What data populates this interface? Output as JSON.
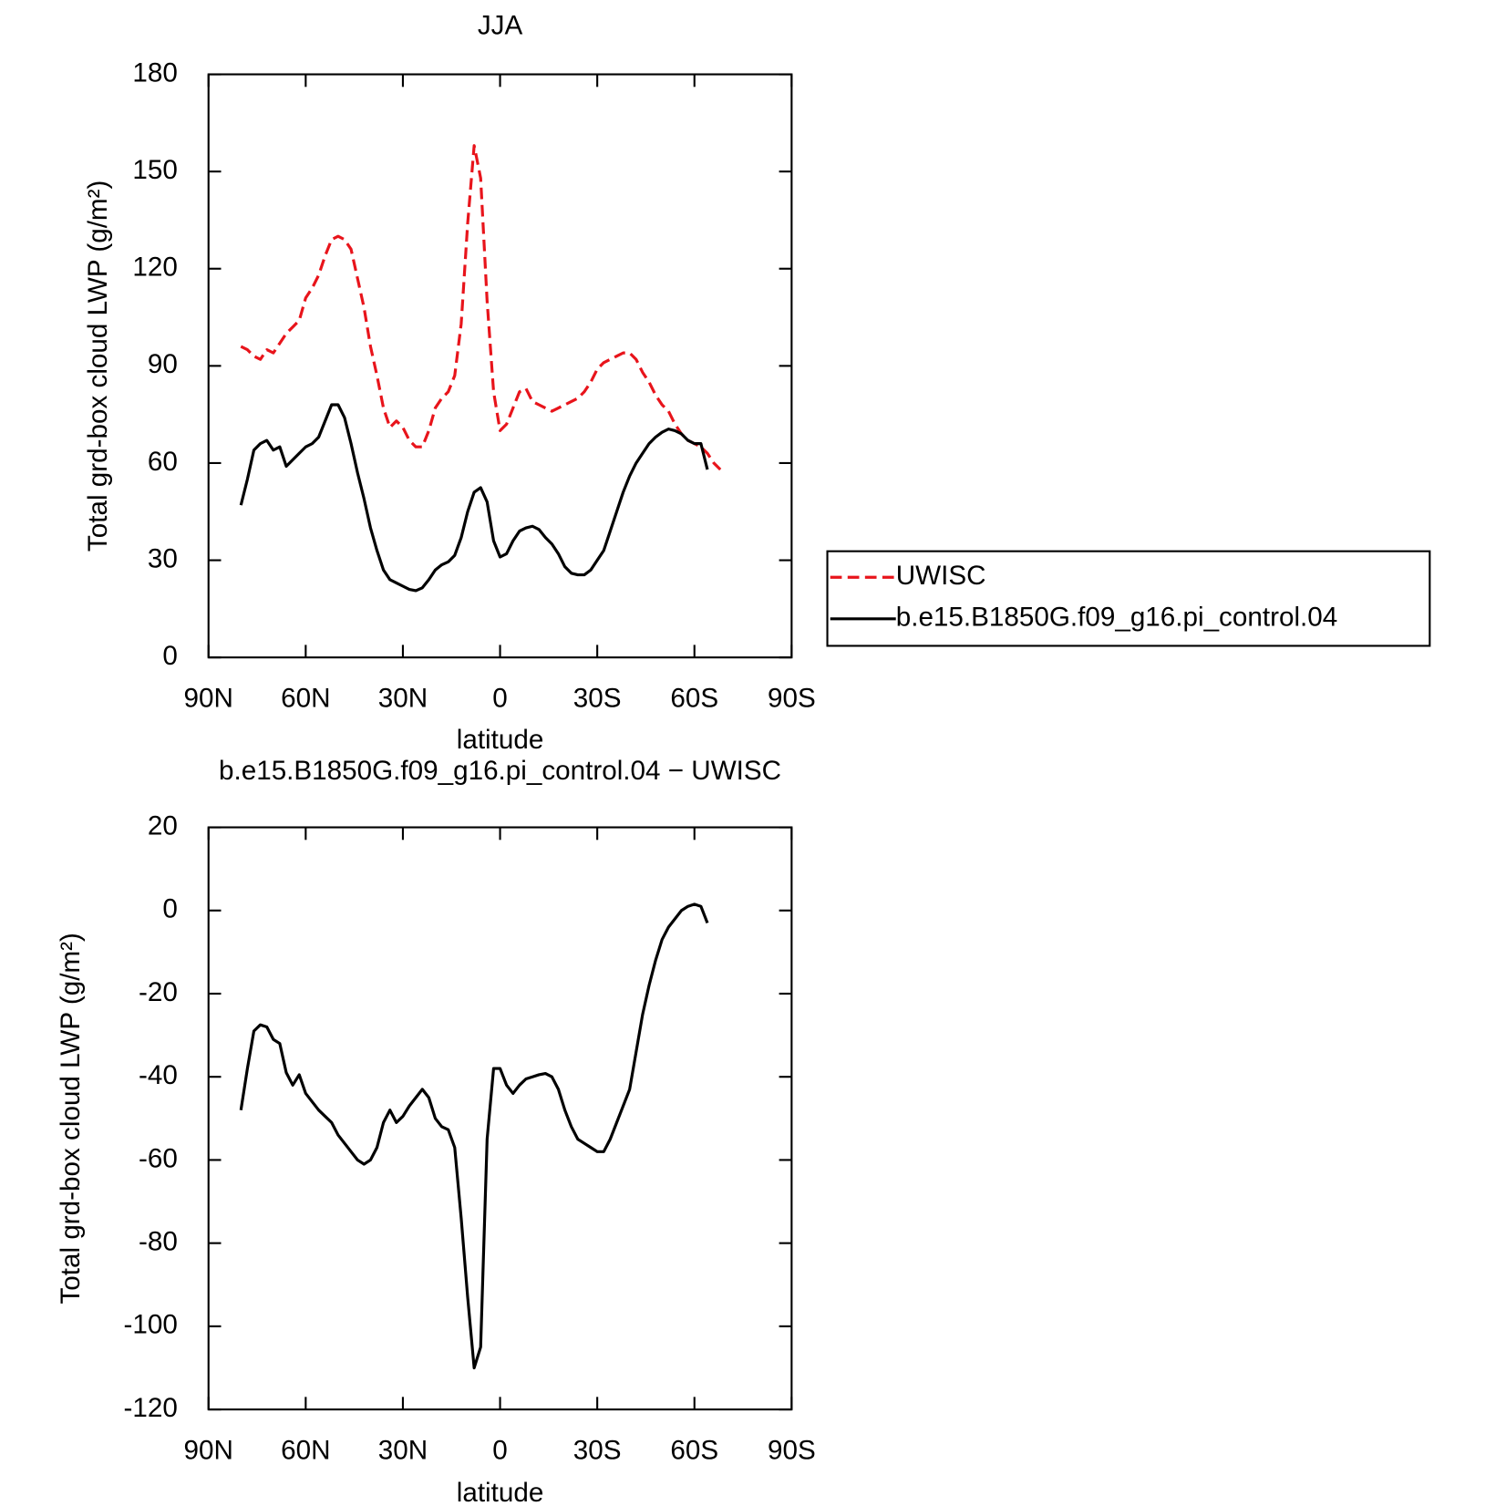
{
  "chart_data": [
    {
      "type": "line",
      "title": "JJA",
      "xlabel": "latitude",
      "ylabel": "Total grd-box cloud LWP (g/m²)",
      "xlim": [
        90,
        -90
      ],
      "xticks": [
        {
          "value": 90,
          "label": "90N"
        },
        {
          "value": 60,
          "label": "60N"
        },
        {
          "value": 30,
          "label": "30N"
        },
        0,
        {
          "value": -30,
          "label": "30S"
        },
        {
          "value": -60,
          "label": "60S"
        },
        {
          "value": -90,
          "label": "90S"
        }
      ],
      "ylim": [
        0,
        180
      ],
      "yticks": [
        0,
        30,
        60,
        90,
        120,
        150,
        180
      ],
      "legend": "right",
      "x": [
        80,
        78,
        76,
        74,
        72,
        70,
        68,
        66,
        64,
        62,
        60,
        58,
        56,
        54,
        52,
        50,
        48,
        46,
        44,
        42,
        40,
        38,
        36,
        34,
        32,
        30,
        28,
        26,
        24,
        22,
        20,
        18,
        16,
        14,
        12,
        10,
        8,
        6,
        4,
        2,
        0,
        -2,
        -4,
        -6,
        -8,
        -10,
        -12,
        -14,
        -16,
        -18,
        -20,
        -22,
        -24,
        -26,
        -28,
        -30,
        -32,
        -34,
        -36,
        -38,
        -40,
        -42,
        -44,
        -46,
        -48,
        -50,
        -52,
        -54,
        -56,
        -58,
        -60,
        -62,
        -64,
        -66,
        -68
      ],
      "series": [
        {
          "name": "UWISC",
          "color": "#e8141b",
          "line_style": "dashed",
          "values": [
            96,
            95,
            93,
            92,
            95,
            94,
            97,
            100,
            102,
            104,
            111,
            114,
            118,
            124,
            129,
            130,
            129,
            126,
            117,
            108,
            96,
            87,
            77,
            71,
            73,
            71,
            67,
            65,
            65,
            70,
            77,
            80,
            82,
            87,
            103,
            134,
            158,
            148,
            110,
            82,
            70,
            72,
            77,
            82,
            83,
            79,
            78,
            77,
            76,
            77,
            78,
            79,
            80,
            82,
            85,
            89,
            91,
            92,
            93,
            94,
            94,
            92,
            88,
            85,
            81,
            78,
            76,
            72,
            69,
            67,
            66,
            65,
            63,
            60,
            58
          ]
        },
        {
          "name": "b.e15.B1850G.f09_g16.pi_control.04",
          "color": "#000000",
          "line_style": "solid",
          "values": [
            47,
            55,
            64,
            66,
            67,
            64,
            65,
            59,
            61,
            63,
            65,
            66,
            68,
            73,
            78,
            78,
            74,
            66,
            57,
            49,
            40,
            33,
            27,
            24,
            23,
            22,
            21,
            20.6,
            21.5,
            24,
            27,
            28.6,
            29.5,
            31.5,
            37,
            45,
            51,
            52.4,
            48,
            36,
            31,
            32,
            36,
            39,
            40,
            40.5,
            39.5,
            37,
            35,
            32,
            28,
            26,
            25.5,
            25.5,
            27,
            30,
            33,
            39,
            45,
            51,
            56,
            60,
            63,
            66,
            68,
            69.5,
            70.5,
            70,
            69,
            67,
            66,
            66,
            58,
            null,
            null
          ]
        }
      ]
    },
    {
      "type": "line",
      "title": "b.e15.B1850G.f09_g16.pi_control.04 − UWISC",
      "xlabel": "latitude",
      "ylabel": "Total grd-box cloud LWP (g/m²)",
      "xlim": [
        90,
        -90
      ],
      "xticks": [
        {
          "value": 90,
          "label": "90N"
        },
        {
          "value": 60,
          "label": "60N"
        },
        {
          "value": 30,
          "label": "30N"
        },
        0,
        {
          "value": -30,
          "label": "30S"
        },
        {
          "value": -60,
          "label": "60S"
        },
        {
          "value": -90,
          "label": "90S"
        }
      ],
      "ylim": [
        -120,
        20
      ],
      "yticks": [
        -120,
        -100,
        -80,
        -60,
        -40,
        -20,
        0,
        20
      ],
      "x": [
        80,
        78,
        76,
        74,
        72,
        70,
        68,
        66,
        64,
        62,
        60,
        58,
        56,
        54,
        52,
        50,
        48,
        46,
        44,
        42,
        40,
        38,
        36,
        34,
        32,
        30,
        28,
        26,
        24,
        22,
        20,
        18,
        16,
        14,
        12,
        10,
        8,
        6,
        4,
        2,
        0,
        -2,
        -4,
        -6,
        -8,
        -10,
        -12,
        -14,
        -16,
        -18,
        -20,
        -22,
        -24,
        -26,
        -28,
        -30,
        -32,
        -34,
        -36,
        -38,
        -40,
        -42,
        -44,
        -46,
        -48,
        -50,
        -52,
        -54,
        -56,
        -58,
        -60,
        -62,
        -64,
        -66,
        -68
      ],
      "series": [
        {
          "color": "#000000",
          "line_style": "solid",
          "values": [
            -48,
            -38,
            -29,
            -27.5,
            -28,
            -31,
            -32,
            -39,
            -42,
            -39.5,
            -44,
            -46,
            -48,
            -49.5,
            -51,
            -54,
            -56,
            -58,
            -60,
            -61,
            -60,
            -57,
            -51,
            -48,
            -51,
            -49.5,
            -47,
            -45,
            -43,
            -45,
            -50,
            -52,
            -52.7,
            -57,
            -74,
            -93,
            -110,
            -105,
            -55,
            -38,
            -38,
            -42,
            -44,
            -42,
            -40.5,
            -40,
            -39.5,
            -39.2,
            -40,
            -43,
            -48,
            -52,
            -55,
            -56,
            -57,
            -58,
            -58,
            -55,
            -51,
            -47,
            -43,
            -34,
            -25,
            -18,
            -12,
            -7,
            -4,
            -2,
            0,
            1,
            1.5,
            1,
            -3,
            null,
            null
          ]
        }
      ]
    }
  ]
}
